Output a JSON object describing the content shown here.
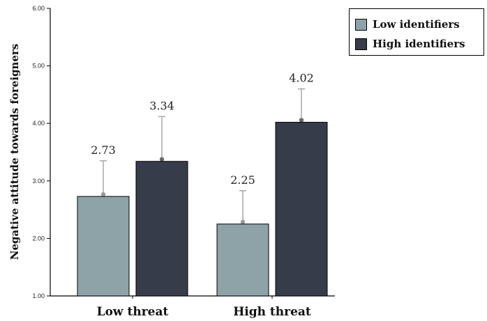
{
  "chart_data": {
    "type": "bar",
    "categories": [
      "Low threat",
      "High threat"
    ],
    "series": [
      {
        "name": "Low identifiers",
        "values": [
          2.73,
          2.25
        ],
        "error_upper": [
          3.35,
          2.83
        ],
        "color": "#8ea3a8"
      },
      {
        "name": "High identifiers",
        "values": [
          3.34,
          4.02
        ],
        "error_upper": [
          4.12,
          4.6
        ],
        "color": "#363c4a"
      }
    ],
    "data_labels": [
      [
        "2.73",
        "2.25"
      ],
      [
        "3.34",
        "4.02"
      ]
    ],
    "ylabel": "Negative attitude towards foreigners",
    "xlabel": "",
    "ylim": [
      1.0,
      6.0
    ],
    "yticks": [
      "1.00",
      "2.00",
      "3.00",
      "4.00",
      "5.00",
      "6.00"
    ],
    "yticks_values": [
      1,
      2,
      3,
      4,
      5,
      6
    ],
    "grid": false,
    "legend_position": "top-right, outside plot"
  }
}
